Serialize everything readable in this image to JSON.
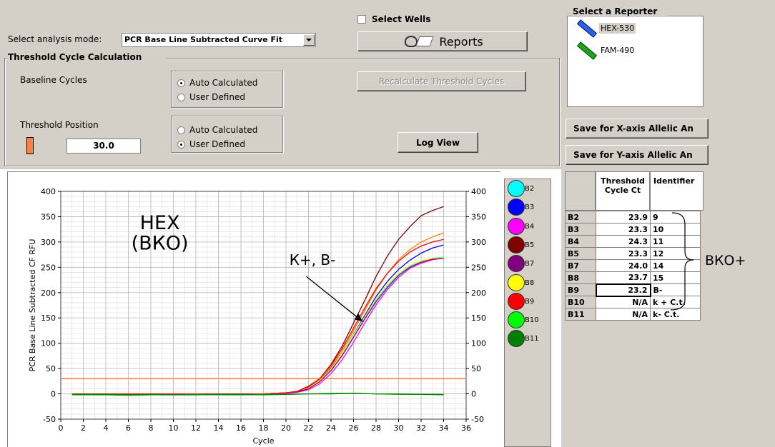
{
  "analysis_mode": {
    "label": "Select analysis mode:",
    "value": "PCR Base Line Subtracted Curve Fit"
  },
  "select_wells": "Select Wells",
  "reports_button": "Reports",
  "threshold_calc": {
    "title": "Threshold Cycle Calculation",
    "baseline_label": "Baseline Cycles",
    "baseline_options": [
      "Auto Calculated",
      "User Defined"
    ],
    "baseline_selected": 0,
    "threshold_label": "Threshold Position",
    "threshold_options": [
      "Auto Calculated",
      "User Defined"
    ],
    "threshold_selected": 1,
    "threshold_value": "30.0",
    "recalc_button": "Recalculate Threshold Cycles",
    "log_view_button": "Log View"
  },
  "reporter": {
    "title": "Select a Reporter",
    "items": [
      "HEX-530",
      "FAM-490"
    ]
  },
  "save_x": "Save for X-axis Allelic An",
  "save_y": "Save for Y-axis Allelic An",
  "wells": [
    {
      "label": "B2",
      "color": "#00ffff"
    },
    {
      "label": "B3",
      "color": "#0000ff"
    },
    {
      "label": "B4",
      "color": "#ff00ff"
    },
    {
      "label": "B5",
      "color": "#800000"
    },
    {
      "label": "B7",
      "color": "#800080"
    },
    {
      "label": "B8",
      "color": "#ffff00"
    },
    {
      "label": "B9",
      "color": "#ff0000"
    },
    {
      "label": "B10",
      "color": "#00ff00"
    },
    {
      "label": "B11",
      "color": "#008000"
    }
  ],
  "table": {
    "headers": [
      "Threshold Cycle Ct",
      "Identifier"
    ],
    "rows": [
      {
        "well": "B2",
        "ct": "23.9",
        "id": "9"
      },
      {
        "well": "B3",
        "ct": "23.3",
        "id": "10"
      },
      {
        "well": "B4",
        "ct": "24.3",
        "id": "11"
      },
      {
        "well": "B5",
        "ct": "23.3",
        "id": "12"
      },
      {
        "well": "B7",
        "ct": "24.0",
        "id": "14"
      },
      {
        "well": "B8",
        "ct": "23.7",
        "id": "15"
      },
      {
        "well": "B9",
        "ct": "23.2",
        "id": "B-"
      },
      {
        "well": "B10",
        "ct": "N/A",
        "id": "k + C.t."
      },
      {
        "well": "B11",
        "ct": "N/A",
        "id": "k- C.t."
      }
    ]
  },
  "bracket_label": "ВКО+",
  "chart_data": {
    "type": "line",
    "xlabel": "Cycle",
    "ylabel": "PCR Base Line Subtracted CF RFU",
    "xlim": [
      0,
      36
    ],
    "ylim": [
      -50,
      400
    ],
    "xticks": [
      0,
      2,
      4,
      6,
      8,
      10,
      12,
      14,
      16,
      18,
      20,
      22,
      24,
      26,
      28,
      30,
      32,
      34,
      36
    ],
    "yticks": [
      -50,
      0,
      50,
      100,
      150,
      200,
      250,
      300,
      350,
      400
    ],
    "threshold": 30,
    "threshold_color": "#ff8040",
    "grid": true,
    "annotation_main": [
      "HEX",
      "(ВКО)"
    ],
    "annotation_arrow": "К+, В-",
    "annotation_arrow_target": {
      "x": 26.8,
      "y": 143
    },
    "series": [
      {
        "color": "#800000",
        "x": [
          1,
          18,
          20,
          21,
          22,
          23,
          24,
          25,
          26,
          27,
          28,
          29,
          30,
          31,
          32,
          33,
          34
        ],
        "y": [
          0,
          0,
          2,
          5,
          15,
          30,
          58,
          95,
          140,
          185,
          232,
          272,
          305,
          330,
          352,
          362,
          370
        ]
      },
      {
        "color": "#ff8000",
        "x": [
          1,
          18,
          20,
          21,
          22,
          23,
          24,
          25,
          26,
          27,
          28,
          29,
          30,
          31,
          32,
          33,
          34
        ],
        "y": [
          0,
          0,
          2,
          4,
          12,
          28,
          52,
          85,
          125,
          165,
          205,
          238,
          265,
          285,
          300,
          310,
          318
        ]
      },
      {
        "color": "#0000ff",
        "x": [
          1,
          18,
          20,
          21,
          22,
          23,
          24,
          25,
          26,
          27,
          28,
          29,
          30,
          31,
          32,
          33,
          34
        ],
        "y": [
          0,
          0,
          2,
          4,
          11,
          26,
          50,
          80,
          118,
          155,
          192,
          222,
          246,
          264,
          278,
          288,
          294
        ]
      },
      {
        "color": "#00ffff",
        "x": [
          1,
          18,
          20,
          21,
          22,
          23,
          24,
          25,
          26,
          27,
          28,
          29,
          30,
          31,
          32,
          33,
          34
        ],
        "y": [
          0,
          0,
          2,
          4,
          11,
          25,
          48,
          78,
          115,
          150,
          185,
          213,
          236,
          252,
          262,
          268,
          270
        ]
      },
      {
        "color": "#ffff00",
        "x": [
          1,
          18,
          20,
          21,
          22,
          23,
          24,
          25,
          26,
          27,
          28,
          29,
          30,
          31,
          32,
          33,
          34
        ],
        "y": [
          0,
          0,
          2,
          4,
          11,
          26,
          49,
          80,
          117,
          152,
          188,
          216,
          238,
          254,
          263,
          268,
          269
        ]
      },
      {
        "color": "#ff00ff",
        "x": [
          1,
          18,
          20,
          21,
          22,
          23,
          24,
          25,
          26,
          27,
          28,
          29,
          30,
          31,
          32,
          33,
          34
        ],
        "y": [
          0,
          0,
          1,
          3,
          8,
          20,
          40,
          68,
          102,
          140,
          176,
          206,
          230,
          248,
          258,
          265,
          268
        ]
      },
      {
        "color": "#800080",
        "x": [
          1,
          18,
          20,
          21,
          22,
          23,
          24,
          25,
          26,
          27,
          28,
          29,
          30,
          31,
          32,
          33,
          34
        ],
        "y": [
          0,
          0,
          2,
          4,
          10,
          24,
          46,
          76,
          112,
          148,
          182,
          210,
          234,
          250,
          260,
          266,
          268
        ]
      },
      {
        "color": "#ff0000",
        "x": [
          1,
          18,
          20,
          21,
          22,
          23,
          24,
          25,
          26,
          27,
          28,
          29,
          30,
          31,
          32,
          33,
          34
        ],
        "y": [
          0,
          0,
          2,
          5,
          14,
          30,
          56,
          90,
          130,
          170,
          208,
          238,
          262,
          280,
          292,
          300,
          305
        ]
      },
      {
        "color": "#00c000",
        "x": [
          1,
          4,
          6,
          8,
          10,
          12,
          14,
          16,
          18,
          20,
          22,
          24,
          26,
          28,
          30,
          32,
          34
        ],
        "y": [
          -2,
          -2,
          -3,
          -2,
          -2,
          -1,
          -2,
          -2,
          -1,
          -1,
          0,
          1,
          1,
          0,
          -1,
          -1,
          -2
        ]
      },
      {
        "color": "#008000",
        "x": [
          1,
          4,
          6,
          8,
          10,
          12,
          14,
          16,
          18,
          20,
          22,
          24,
          26,
          28,
          30,
          32,
          34
        ],
        "y": [
          -1,
          -1,
          -2,
          -1,
          -2,
          -2,
          -1,
          -1,
          -2,
          -1,
          0,
          0,
          1,
          0,
          0,
          -1,
          -1
        ]
      }
    ]
  }
}
